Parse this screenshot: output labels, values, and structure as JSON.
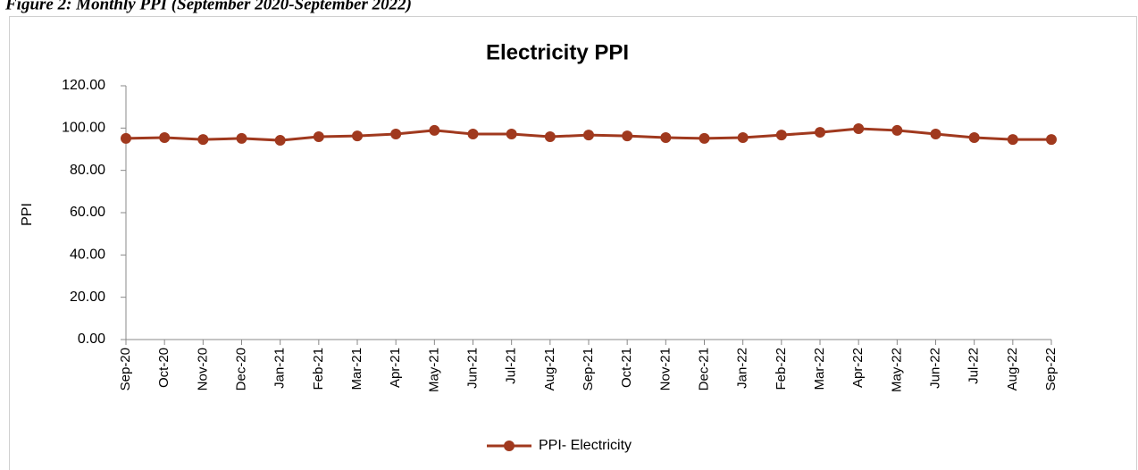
{
  "caption": "Figure 2: Monthly PPI (September 2020-September 2022)",
  "chart_data": {
    "type": "line",
    "title": "Electricity PPI",
    "y_label": "PPI",
    "categories": [
      "Sep-20",
      "Oct-20",
      "Nov-20",
      "Dec-20",
      "Jan-21",
      "Feb-21",
      "Mar-21",
      "Apr-21",
      "May-21",
      "Jun-21",
      "Jul-21",
      "Aug-21",
      "Sep-21",
      "Oct-21",
      "Nov-21",
      "Dec-21",
      "Jan-22",
      "Feb-22",
      "Mar-22",
      "Apr-22",
      "May-22",
      "Jun-22",
      "Jul-22",
      "Aug-22",
      "Sep-22"
    ],
    "series": [
      {
        "name": "PPI- Electricity",
        "color": "#a0391e",
        "values": [
          95.1,
          95.5,
          94.6,
          95.1,
          94.2,
          95.9,
          96.3,
          97.2,
          98.9,
          97.2,
          97.2,
          95.9,
          96.7,
          96.3,
          95.5,
          95.1,
          95.5,
          96.7,
          98.0,
          99.7,
          98.9,
          97.2,
          95.5,
          94.6,
          94.6
        ]
      }
    ],
    "ylim": [
      0,
      120
    ],
    "yticks": [
      {
        "value": 0,
        "label": "0.00"
      },
      {
        "value": 20,
        "label": "20.00"
      },
      {
        "value": 40,
        "label": "40.00"
      },
      {
        "value": 60,
        "label": "60.00"
      },
      {
        "value": 80,
        "label": "80.00"
      },
      {
        "value": 100,
        "label": "100.00"
      },
      {
        "value": 120,
        "label": "120.00"
      }
    ],
    "legend": "bottom"
  }
}
